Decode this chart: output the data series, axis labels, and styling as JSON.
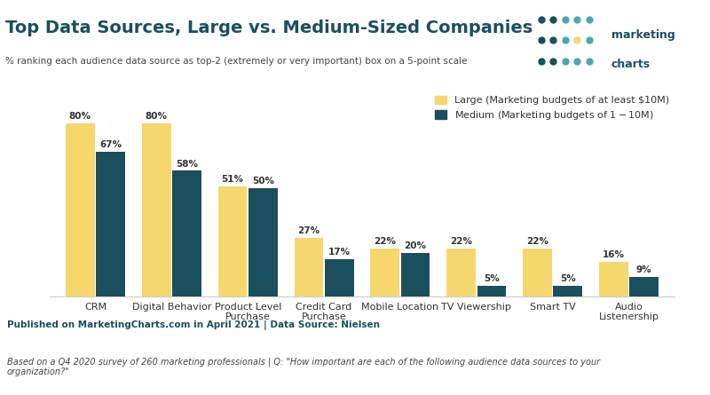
{
  "title": "Top Data Sources, Large vs. Medium-Sized Companies",
  "subtitle": "% ranking each audience data source as top-2 (extremely or very important) box on a 5-point scale",
  "categories": [
    "CRM",
    "Digital Behavior",
    "Product Level\nPurchase",
    "Credit Card\nPurchase",
    "Mobile Location",
    "TV Viewership",
    "Smart TV",
    "Audio\nListenership"
  ],
  "large_values": [
    80,
    80,
    51,
    27,
    22,
    22,
    22,
    16
  ],
  "medium_values": [
    67,
    58,
    50,
    17,
    20,
    5,
    5,
    9
  ],
  "large_color": "#F5D76E",
  "medium_color": "#1B4F5E",
  "large_label": "Large (Marketing budgets of at least $10M)",
  "medium_label": "Medium (Marketing budgets of $1-$10M)",
  "footer_line1": "Published on MarketingCharts.com in April 2021 | Data Source: Nielsen",
  "footer_line2": "Based on a Q4 2020 survey of 260 marketing professionals | Q: \"How important are each of the following audience data sources to your\norganization?\"",
  "background_color": "#FFFFFF",
  "footer_bg_color": "#E8EEF0",
  "title_color": "#1B4F5E",
  "subtitle_color": "#333333",
  "bar_label_color": "#333333",
  "ylim": [
    0,
    95
  ]
}
